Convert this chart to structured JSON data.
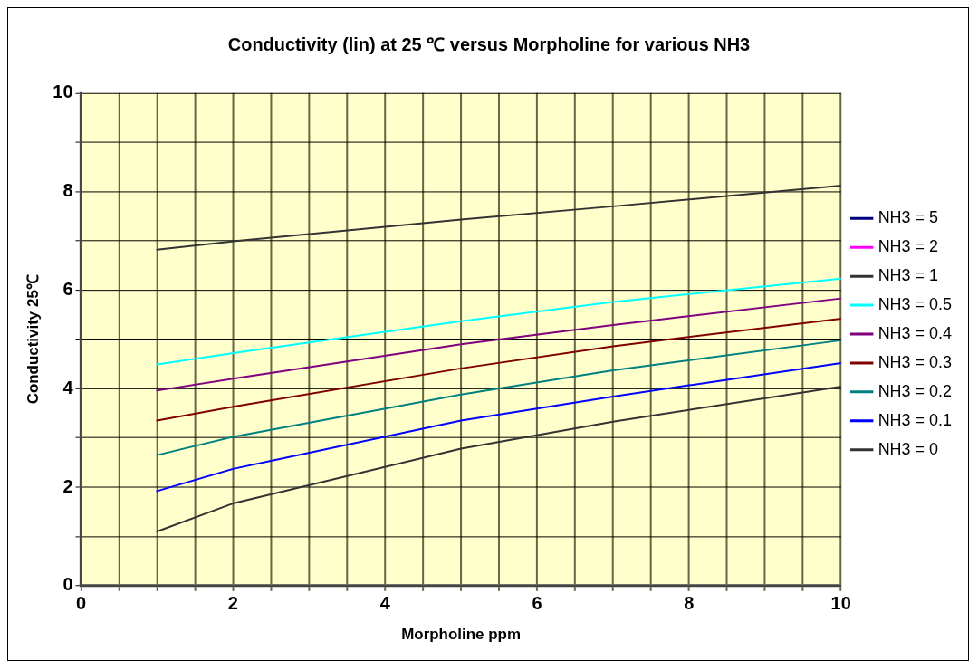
{
  "chart_data": {
    "type": "line",
    "title": "Conductivity (lin) at 25 ℃ versus Morpholine for various NH3",
    "xlabel": "Morpholine ppm",
    "ylabel": "Conductivity 25℃",
    "x": [
      1,
      2,
      5,
      7,
      10
    ],
    "series": [
      {
        "name": "NH3 = 5",
        "color": "#000080",
        "values": [
          null,
          null,
          null,
          null,
          null
        ]
      },
      {
        "name": "NH3 = 2",
        "color": "#ff00ff",
        "values": [
          null,
          null,
          null,
          null,
          null
        ]
      },
      {
        "name": "NH3 = 1",
        "color": "#333333",
        "values": [
          6.82,
          6.99,
          7.43,
          7.7,
          8.12
        ]
      },
      {
        "name": "NH3 = 0.5",
        "color": "#00ffff",
        "values": [
          4.49,
          4.72,
          5.37,
          5.76,
          6.23
        ]
      },
      {
        "name": "NH3 = 0.4",
        "color": "#800080",
        "values": [
          3.96,
          4.2,
          4.9,
          5.29,
          5.83
        ]
      },
      {
        "name": "NH3 = 0.3",
        "color": "#800000",
        "values": [
          3.35,
          3.63,
          4.41,
          4.86,
          5.42
        ]
      },
      {
        "name": "NH3 = 0.2",
        "color": "#008080",
        "values": [
          2.65,
          3.02,
          3.88,
          4.37,
          4.98
        ]
      },
      {
        "name": "NH3 = 0.1",
        "color": "#0000ff",
        "values": [
          1.92,
          2.37,
          3.35,
          3.84,
          4.52
        ]
      },
      {
        "name": "NH3 = 0",
        "color": "#333333",
        "values": [
          1.1,
          1.67,
          2.78,
          3.33,
          4.04
        ]
      }
    ],
    "xlim": [
      0,
      10
    ],
    "xticks": [
      0,
      {
        "value": 0.5,
        "label": null
      },
      {
        "value": 1,
        "label": null
      },
      {
        "value": 1.5,
        "label": null
      },
      2,
      {
        "value": 2.5,
        "label": null
      },
      {
        "value": 3,
        "label": null
      },
      {
        "value": 3.5,
        "label": null
      },
      4,
      {
        "value": 4.5,
        "label": null
      },
      {
        "value": 5,
        "label": null
      },
      {
        "value": 5.5,
        "label": null
      },
      6,
      {
        "value": 6.5,
        "label": null
      },
      {
        "value": 7,
        "label": null
      },
      {
        "value": 7.5,
        "label": null
      },
      8,
      {
        "value": 8.5,
        "label": null
      },
      {
        "value": 9,
        "label": null
      },
      {
        "value": 9.5,
        "label": null
      },
      10
    ],
    "ylim": [
      0,
      10
    ],
    "yticks": [
      0,
      {
        "value": 1,
        "label": null
      },
      2,
      {
        "value": 3,
        "label": null
      },
      4,
      {
        "value": 5,
        "label": null
      },
      6,
      {
        "value": 7,
        "label": null
      },
      8,
      {
        "value": 9,
        "label": null
      },
      10
    ],
    "grid": true,
    "legend": "right",
    "marker": "none",
    "line_style": "solid"
  }
}
